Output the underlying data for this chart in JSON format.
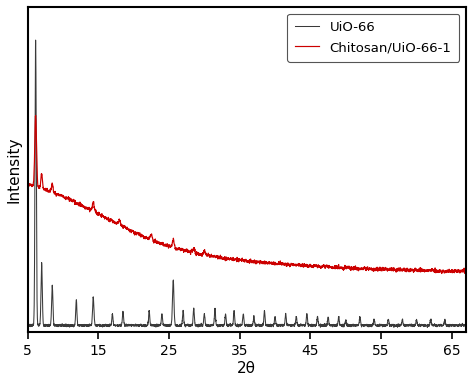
{
  "xlabel": "2θ",
  "ylabel": "Intensity",
  "xlim": [
    5,
    67
  ],
  "xticks": [
    5,
    15,
    25,
    35,
    45,
    55,
    65
  ],
  "xtick_labels": [
    "5",
    "15",
    "25",
    "35",
    "45",
    "55",
    "65"
  ],
  "uio66_color": "#3a3a3a",
  "chitosan_color": "#cc0000",
  "legend_labels": [
    "UiO-66",
    "Chitosan/UiO-66-1"
  ],
  "figsize": [
    4.73,
    3.83
  ],
  "dpi": 100
}
